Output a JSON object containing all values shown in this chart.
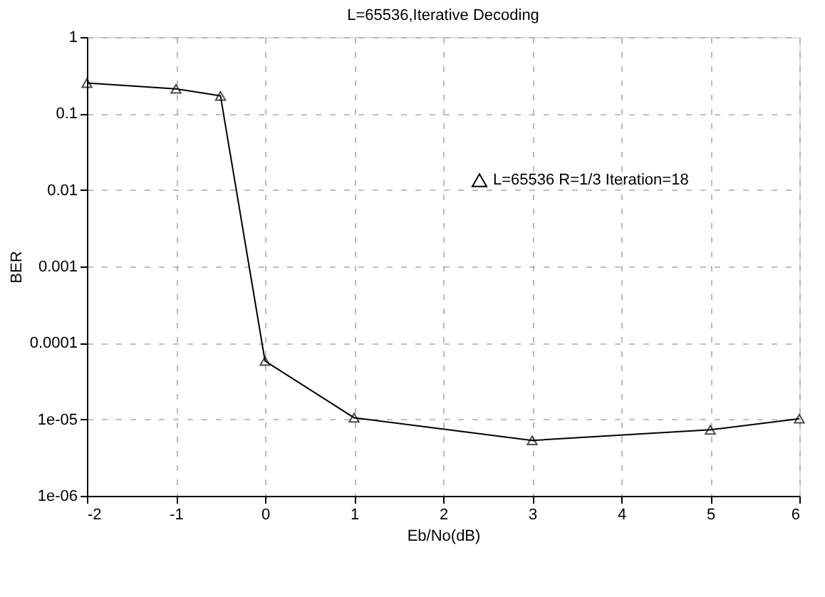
{
  "chart_data": {
    "type": "line",
    "title": "L=65536,Iterative Decoding",
    "xlabel": "Eb/No(dB)",
    "ylabel": "BER",
    "x": [
      -2,
      -1,
      -0.5,
      0,
      1,
      3,
      5,
      6
    ],
    "series": [
      {
        "name": "L=65536 R=1/3 Iteration=18",
        "color": "#000000",
        "values": [
          0.25,
          0.21,
          0.17,
          5.8e-05,
          1.05e-05,
          5.3e-06,
          7.3e-06,
          1.02e-05
        ]
      }
    ],
    "log": "y",
    "xlim": [
      -2,
      6
    ],
    "xticks": [
      -2,
      -1,
      0,
      1,
      2,
      3,
      4,
      5,
      6
    ],
    "ylim": [
      1e-06,
      1
    ],
    "yticks": [
      1,
      0.1,
      0.01,
      0.001,
      0.0001,
      {
        "value": 1e-05,
        "label": "1e-05"
      },
      {
        "value": 1e-06,
        "label": "1e-06"
      }
    ],
    "grid": true,
    "legend": "right",
    "marker": "triangle",
    "line_style": "solid"
  }
}
